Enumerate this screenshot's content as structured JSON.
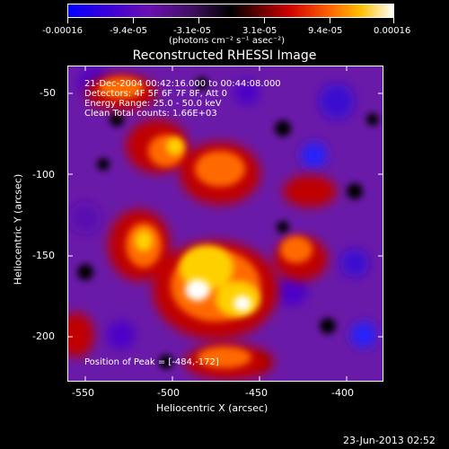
{
  "colorbar": {
    "ticks": [
      "-0.00016",
      "-9.4e-05",
      "-3.1e-05",
      "3.1e-05",
      "9.4e-05",
      "0.00016"
    ],
    "unit": "(photons cm⁻² s⁻¹ asec⁻²)",
    "colors": [
      "#0000ff",
      "#4b00c8",
      "#7a1aa0",
      "#000000",
      "#8b0000",
      "#ff0000",
      "#ff8000",
      "#ffff00",
      "#ffffff"
    ]
  },
  "title": "Reconstructed RHESSI Image",
  "annotations": {
    "line1": "21-Dec-2004 00:42:16.000 to 00:44:08.000",
    "line2": "Detectors: 4F 5F 6F 7F 8F, Att 0",
    "line3": "Energy Range: 25.0 - 50.0 keV",
    "line4": "Clean    Total counts: 1.66E+03",
    "peak": "Position of Peak = [-484,-172]"
  },
  "axes": {
    "xlabel": "Heliocentric X (arcsec)",
    "ylabel": "Heliocentric Y (arcsec)",
    "xticks": [
      "-550",
      "-500",
      "-450",
      "-400"
    ],
    "yticks": [
      "-50",
      "-100",
      "-150",
      "-200"
    ]
  },
  "footer": {
    "timestamp": "23-Jun-2013 02:52"
  }
}
